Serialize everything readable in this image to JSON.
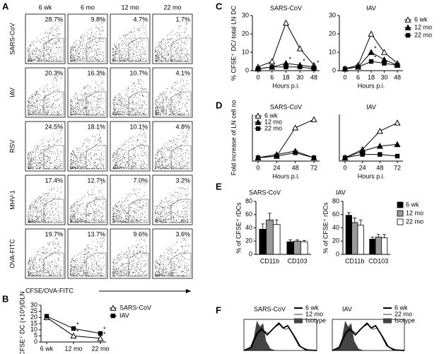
{
  "chart_data": [
    {
      "panel": "A",
      "type": "flow-grid",
      "columns": [
        "6 wk",
        "6 mo",
        "12 mo",
        "22 mo"
      ],
      "rows": [
        "SARS-CoV",
        "IAV",
        "RSV",
        "MHV-1",
        "OVA-FITC"
      ],
      "values": [
        [
          28.7,
          9.8,
          4.7,
          1.7
        ],
        [
          20.3,
          16.3,
          10.7,
          4.1
        ],
        [
          24.5,
          18.1,
          10.1,
          4.8
        ],
        [
          17.4,
          12.7,
          7.0,
          3.2
        ],
        [
          19.7,
          13.7,
          9.6,
          3.6
        ]
      ],
      "value_labels": [
        [
          "28.7%",
          "9.8%",
          "4.7%",
          "1.7%"
        ],
        [
          "20.3%",
          "16.3%",
          "10.7%",
          "4.1%"
        ],
        [
          "24.5%",
          "18.1%",
          "10.1%",
          "4.8%"
        ],
        [
          "17.4%",
          "12.7%",
          "7.0%",
          "3.2%"
        ],
        [
          "19.7%",
          "13.7%",
          "9.6%",
          "3.6%"
        ]
      ],
      "xlabel": "CFSE/OVA-FITC"
    },
    {
      "panel": "B",
      "type": "line",
      "categories": [
        "6 wk",
        "12 mo",
        "22 mo"
      ],
      "ylabel": "CFSE⁺ DC (×10³)/DLN",
      "ylim": [
        0,
        30
      ],
      "yticks": [
        0,
        5,
        10,
        15,
        20,
        25,
        30
      ],
      "legend": "right",
      "series": [
        {
          "name": "SARS-CoV",
          "marker": "triangle-open",
          "color": "#000000",
          "values": [
            20,
            5,
            3
          ],
          "significance": [
            null,
            "*",
            "*"
          ]
        },
        {
          "name": "IAV",
          "marker": "square",
          "color": "#000000",
          "values": [
            21,
            11,
            7
          ],
          "significance": [
            null,
            "*",
            "*"
          ]
        }
      ]
    },
    {
      "panel": "C",
      "type": "line",
      "title": "SARS-CoV",
      "categories": [
        "0",
        "6",
        "18",
        "30",
        "48"
      ],
      "xlabel": "Hours p.i.",
      "ylabel": "% CFSE⁺ DC/ total LN DC",
      "ylim": [
        0,
        30
      ],
      "yticks": [
        0,
        10,
        20,
        30
      ],
      "series": [
        {
          "name": "6 wk",
          "marker": "triangle-open",
          "color": "#000000",
          "values": [
            2,
            5,
            26,
            12,
            3
          ],
          "significance": [
            null,
            null,
            null,
            null,
            null
          ]
        },
        {
          "name": "12 mo",
          "marker": "triangle",
          "color": "#000000",
          "values": [
            1,
            2,
            4,
            3,
            2
          ],
          "significance": [
            null,
            null,
            "*",
            "*",
            "*"
          ]
        },
        {
          "name": "22 mo",
          "marker": "square",
          "color": "#000000",
          "values": [
            1,
            2,
            2,
            2,
            1
          ],
          "significance": [
            null,
            null,
            null,
            null,
            null
          ]
        }
      ]
    },
    {
      "type": "line",
      "title": "IAV",
      "categories": [
        "0",
        "6",
        "18",
        "30",
        "48"
      ],
      "xlabel": "Hours p.i.",
      "ylim": [
        0,
        30
      ],
      "yticks": [
        0,
        10,
        20,
        30
      ],
      "legend": "right",
      "series": [
        {
          "name": "6 wk",
          "marker": "triangle-open",
          "color": "#000000",
          "values": [
            1,
            3,
            20,
            10,
            4
          ],
          "significance": [
            null,
            null,
            null,
            null,
            null
          ]
        },
        {
          "name": "12 mo",
          "marker": "triangle",
          "color": "#000000",
          "values": [
            1,
            2,
            10,
            6,
            3
          ],
          "significance": [
            null,
            null,
            "*",
            null,
            null
          ]
        },
        {
          "name": "22 mo",
          "marker": "square",
          "color": "#000000",
          "values": [
            1,
            2,
            5,
            4,
            3
          ],
          "significance": [
            null,
            null,
            "*",
            null,
            null
          ]
        }
      ]
    },
    {
      "panel": "D",
      "type": "line",
      "title": "SARS-CoV",
      "categories": [
        "0",
        "24",
        "48",
        "72"
      ],
      "xlabel": "Hours p.i.",
      "ylabel": "Fold increase of LN cell no",
      "ylim": [
        0,
        14
      ],
      "legend": "top-left",
      "series": [
        {
          "name": "6 wk",
          "marker": "triangle-open",
          "color": "#000000",
          "values": [
            1,
            1.5,
            10,
            12.5
          ]
        },
        {
          "name": "12 mo",
          "marker": "triangle",
          "color": "#000000",
          "values": [
            1,
            2,
            3,
            1
          ]
        },
        {
          "name": "22 mo",
          "marker": "square",
          "color": "#000000",
          "values": [
            1,
            1.5,
            2.5,
            1
          ]
        }
      ]
    },
    {
      "type": "line",
      "title": "IAV",
      "categories": [
        "0",
        "24",
        "48",
        "72"
      ],
      "xlabel": "Hours p.i.",
      "ylim": [
        0,
        14
      ],
      "series": [
        {
          "name": "6 wk",
          "marker": "triangle-open",
          "color": "#000000",
          "values": [
            1,
            3.5,
            9,
            11.5
          ]
        },
        {
          "name": "12 mo",
          "marker": "triangle",
          "color": "#000000",
          "values": [
            1,
            3,
            4.5,
            5
          ]
        },
        {
          "name": "22 mo",
          "marker": "square",
          "color": "#000000",
          "values": [
            1,
            2,
            2,
            1.5
          ]
        }
      ]
    },
    {
      "panel": "E",
      "type": "bar",
      "title": "SARS-CoV",
      "categories": [
        "CD11b",
        "CD103"
      ],
      "ylabel": "% of CFSE⁺ rDCs",
      "ylim": [
        0,
        80
      ],
      "yticks": [
        0,
        20,
        40,
        60,
        80
      ],
      "series": [
        {
          "name": "6 wk",
          "color": "#000000",
          "values": [
            38,
            19
          ],
          "errors": [
            8,
            3
          ]
        },
        {
          "name": "12 mo",
          "color": "#9a9a9a",
          "values": [
            52,
            20
          ],
          "errors": [
            10,
            2
          ]
        },
        {
          "name": "22 mo",
          "color": "#ffffff",
          "values": [
            45,
            19
          ],
          "errors": [
            7,
            2
          ]
        }
      ]
    },
    {
      "type": "bar",
      "title": "IAV",
      "categories": [
        "CD11b",
        "CD103"
      ],
      "ylabel": "% of CFSE⁺ rDCs",
      "ylim": [
        0,
        80
      ],
      "yticks": [
        0,
        20,
        40,
        60,
        80
      ],
      "legend": "right",
      "series": [
        {
          "name": "6 wk",
          "color": "#000000",
          "values": [
            59,
            23
          ],
          "errors": [
            4,
            3
          ]
        },
        {
          "name": "12 mo",
          "color": "#9a9a9a",
          "values": [
            48,
            26
          ],
          "errors": [
            7,
            4
          ]
        },
        {
          "name": "22 mo",
          "color": "#ffffff",
          "values": [
            44,
            25
          ],
          "errors": [
            8,
            5
          ]
        }
      ]
    },
    {
      "panel": "F",
      "type": "histogram-overlay",
      "title": "SARS-CoV",
      "legend": "right",
      "series": [
        {
          "name": "6 wk",
          "color": "#000000"
        },
        {
          "name": "12 mo",
          "color": "#000000"
        },
        {
          "name": "Isotype",
          "color": "#444444"
        }
      ]
    },
    {
      "type": "histogram-overlay",
      "title": "IAV",
      "legend": "right",
      "series": [
        {
          "name": "6 wk",
          "color": "#000000"
        },
        {
          "name": "22 mo",
          "color": "#000000"
        },
        {
          "name": "Isotype",
          "color": "#444444"
        }
      ]
    }
  ]
}
